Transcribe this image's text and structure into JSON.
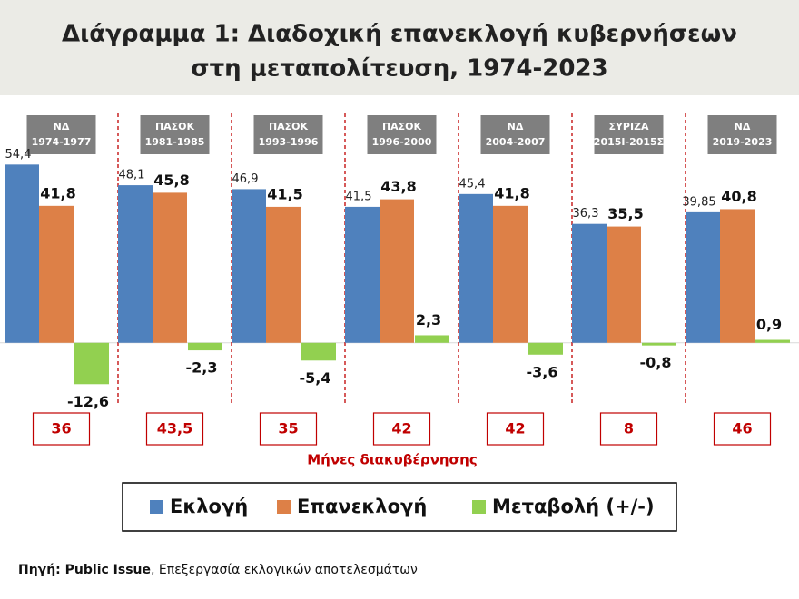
{
  "chart_data": {
    "type": "bar",
    "title_lines": [
      "Διάγραμμα 1: Διαδοχική επανεκλογή κυβερνήσεων",
      "στη μεταπολίτευση, 1974-2023"
    ],
    "categories": [
      "ΝΔ",
      "ΠΑΣΟΚ",
      "ΠΑΣΟΚ",
      "ΠΑΣΟΚ",
      "ΝΔ",
      "ΣΥΡΙΖΑ",
      "ΝΔ"
    ],
    "periods": [
      "1974-1977",
      "1981-1985",
      "1993-1996",
      "1996-2000",
      "2004-2007",
      "2015Ι-2015Σ",
      "2019-2023"
    ],
    "series": [
      {
        "name": "Εκλογή",
        "color": "#4f81bd",
        "values": [
          54.4,
          48.1,
          46.9,
          41.5,
          45.4,
          36.3,
          39.85
        ],
        "value_labels": [
          "54,4",
          "48,1",
          "46,9",
          "41,5",
          "45,4",
          "36,3",
          "39,85"
        ]
      },
      {
        "name": "Επανεκλογή",
        "color": "#dd8047",
        "values": [
          41.8,
          45.8,
          41.5,
          43.8,
          41.8,
          35.5,
          40.8
        ],
        "value_labels": [
          "41,8",
          "45,8",
          "41,5",
          "43,8",
          "41,8",
          "35,5",
          "40,8"
        ]
      },
      {
        "name": "Μεταβολή (+/-)",
        "color": "#92d050",
        "values": [
          -12.6,
          -2.3,
          -5.4,
          2.3,
          -3.6,
          -0.8,
          0.9
        ],
        "value_labels": [
          "-12,6",
          "-2,3",
          "-5,4",
          "2,3",
          "-3,6",
          "-0,8",
          "0,9"
        ]
      }
    ],
    "ylim": [
      -20,
      70
    ],
    "months_title": "Μήνες διακυβέρνησης",
    "months": [
      "36",
      "43,5",
      "35",
      "42",
      "42",
      "8",
      "46"
    ],
    "source": {
      "label": "Πηγή: Public Issue",
      "text": ", Επεξεργασία εκλογικών αποτελεσμάτων"
    }
  }
}
